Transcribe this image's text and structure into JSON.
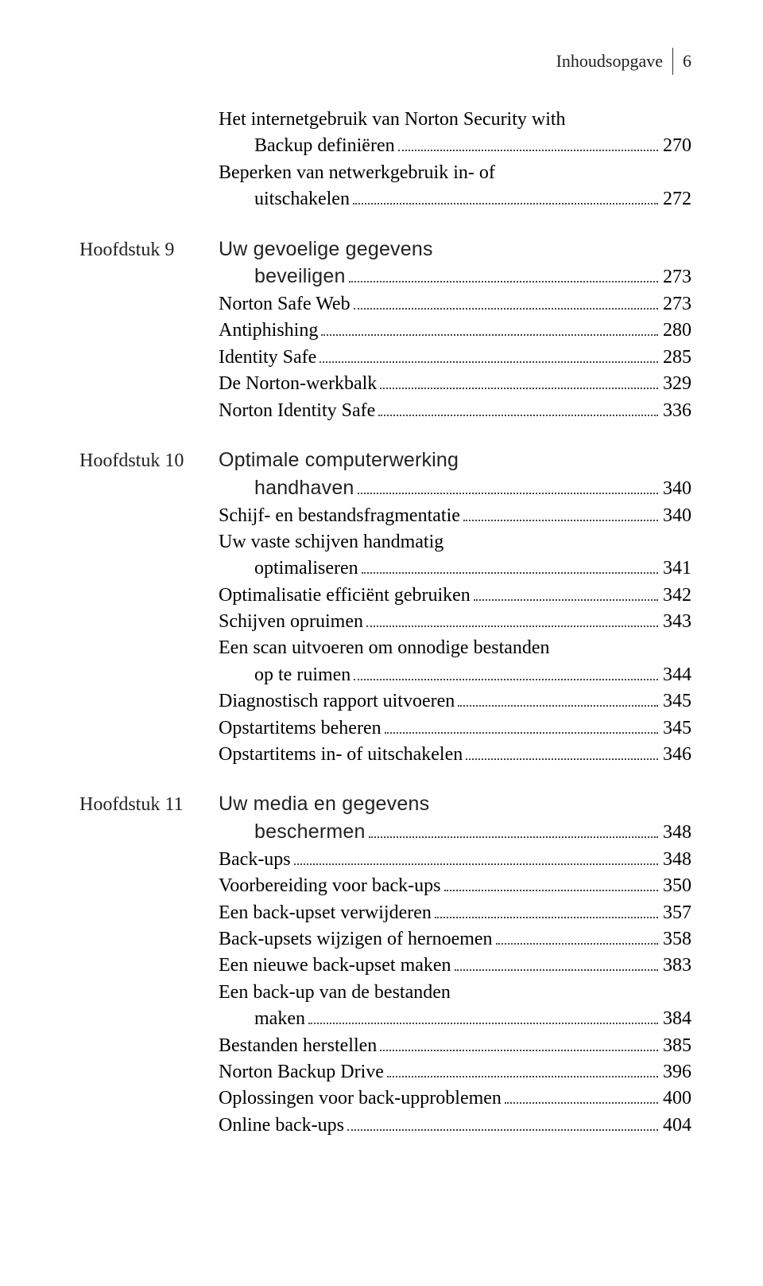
{
  "header": {
    "title": "Inhoudsopgave",
    "page": "6"
  },
  "colors": {
    "background": "#ffffff",
    "text": "#000000",
    "dots": "#444444"
  },
  "typography": {
    "body_fontsize": 24,
    "header_fontsize": 22,
    "section_fontsize": 25
  },
  "entries": [
    {
      "chapter": "",
      "lines": [
        "Het internetgebruik van Norton Security with",
        "Backup definiëren"
      ],
      "page": "270",
      "section": false
    },
    {
      "chapter": "",
      "lines": [
        "Beperken van netwerkgebruik in- of",
        "uitschakelen"
      ],
      "page": "272",
      "section": false
    },
    {
      "chapter": "Hoofdstuk 9",
      "lines": [
        "Uw gevoelige gegevens",
        "beveiligen"
      ],
      "page": "273",
      "section": true,
      "gap": true
    },
    {
      "chapter": "",
      "lines": [
        "Norton Safe Web"
      ],
      "page": "273",
      "section": false
    },
    {
      "chapter": "",
      "lines": [
        "Antiphishing"
      ],
      "page": "280",
      "section": false
    },
    {
      "chapter": "",
      "lines": [
        "Identity Safe"
      ],
      "page": "285",
      "section": false
    },
    {
      "chapter": "",
      "lines": [
        "De Norton-werkbalk"
      ],
      "page": "329",
      "section": false
    },
    {
      "chapter": "",
      "lines": [
        "Norton Identity Safe"
      ],
      "page": "336",
      "section": false
    },
    {
      "chapter": "Hoofdstuk 10",
      "lines": [
        "Optimale computerwerking",
        "handhaven"
      ],
      "page": "340",
      "section": true,
      "gap": true
    },
    {
      "chapter": "",
      "lines": [
        "Schijf- en bestandsfragmentatie"
      ],
      "page": "340",
      "section": false
    },
    {
      "chapter": "",
      "lines": [
        "Uw vaste schijven handmatig",
        "optimaliseren"
      ],
      "page": "341",
      "section": false
    },
    {
      "chapter": "",
      "lines": [
        "Optimalisatie efficiënt gebruiken"
      ],
      "page": "342",
      "section": false
    },
    {
      "chapter": "",
      "lines": [
        "Schijven opruimen"
      ],
      "page": "343",
      "section": false
    },
    {
      "chapter": "",
      "lines": [
        "Een scan uitvoeren om onnodige bestanden",
        "op te ruimen"
      ],
      "page": "344",
      "section": false
    },
    {
      "chapter": "",
      "lines": [
        "Diagnostisch rapport uitvoeren"
      ],
      "page": "345",
      "section": false
    },
    {
      "chapter": "",
      "lines": [
        "Opstartitems beheren"
      ],
      "page": "345",
      "section": false
    },
    {
      "chapter": "",
      "lines": [
        "Opstartitems in- of uitschakelen"
      ],
      "page": "346",
      "section": false
    },
    {
      "chapter": "Hoofdstuk 11",
      "lines": [
        "Uw media en gegevens",
        "beschermen"
      ],
      "page": "348",
      "section": true,
      "gap": true
    },
    {
      "chapter": "",
      "lines": [
        "Back-ups"
      ],
      "page": "348",
      "section": false
    },
    {
      "chapter": "",
      "lines": [
        "Voorbereiding voor back-ups"
      ],
      "page": "350",
      "section": false
    },
    {
      "chapter": "",
      "lines": [
        "Een back-upset verwijderen"
      ],
      "page": "357",
      "section": false
    },
    {
      "chapter": "",
      "lines": [
        "Back-upsets wijzigen of hernoemen"
      ],
      "page": "358",
      "section": false
    },
    {
      "chapter": "",
      "lines": [
        "Een nieuwe back-upset maken"
      ],
      "page": "383",
      "section": false
    },
    {
      "chapter": "",
      "lines": [
        "Een back-up van de bestanden",
        "maken"
      ],
      "page": "384",
      "section": false
    },
    {
      "chapter": "",
      "lines": [
        "Bestanden herstellen"
      ],
      "page": "385",
      "section": false
    },
    {
      "chapter": "",
      "lines": [
        "Norton Backup Drive"
      ],
      "page": "396",
      "section": false
    },
    {
      "chapter": "",
      "lines": [
        "Oplossingen voor back-upproblemen"
      ],
      "page": "400",
      "section": false
    },
    {
      "chapter": "",
      "lines": [
        "Online back-ups"
      ],
      "page": "404",
      "section": false
    }
  ]
}
